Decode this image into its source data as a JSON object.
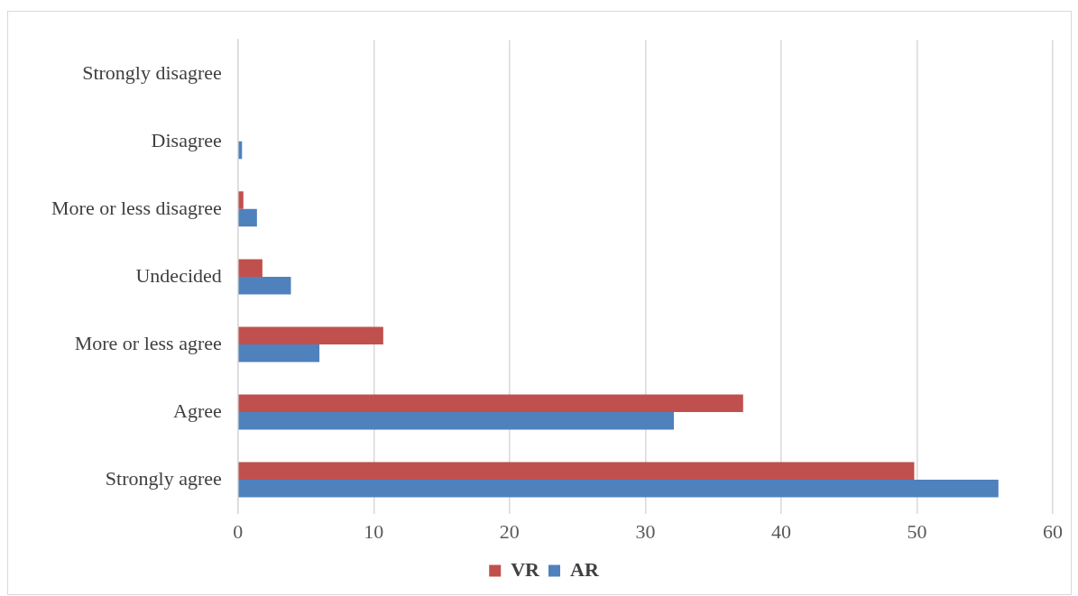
{
  "chart_data": {
    "type": "bar",
    "orientation": "horizontal",
    "categories": [
      "Strongly disagree",
      "Disagree",
      "More or less disagree",
      "Undecided",
      "More or less agree",
      "Agree",
      "Strongly agree"
    ],
    "series": [
      {
        "name": "VR",
        "color": "#c0504d",
        "values": [
          0,
          0,
          0.4,
          1.8,
          10.7,
          37.2,
          49.8
        ]
      },
      {
        "name": "AR",
        "color": "#4f81bd",
        "values": [
          0,
          0.3,
          1.4,
          3.9,
          6.0,
          32.1,
          56.0
        ]
      }
    ],
    "xlim": [
      0,
      60
    ],
    "xticks": [
      0,
      10,
      20,
      30,
      40,
      50,
      60
    ],
    "grid": "x",
    "legend": "bottom"
  }
}
